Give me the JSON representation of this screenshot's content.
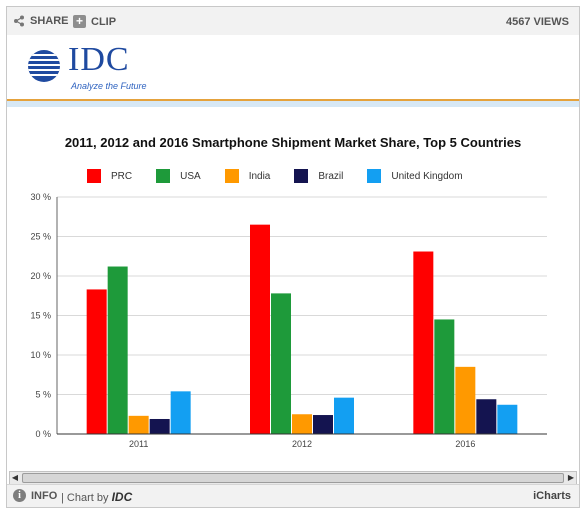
{
  "toolbar": {
    "share_label": "SHARE",
    "clip_label": "CLIP",
    "views": "4567 VIEWS"
  },
  "logo": {
    "text": "IDC",
    "tagline": "Analyze the Future"
  },
  "footer": {
    "info_label": "INFO",
    "chart_by": "| Chart by",
    "chart_by_brand": "IDC",
    "brand": "iCharts"
  },
  "colors": {
    "PRC": "#ff0000",
    "USA": "#1e9a3a",
    "India": "#ff9900",
    "Brazil": "#141450",
    "United Kingdom": "#139ff2"
  },
  "chart_data": {
    "type": "bar",
    "title": "2011, 2012 and 2016 Smartphone Shipment Market Share, Top 5 Countries",
    "categories": [
      "2011",
      "2012",
      "2016"
    ],
    "series": [
      {
        "name": "PRC",
        "values": [
          18.3,
          26.5,
          23.1
        ]
      },
      {
        "name": "USA",
        "values": [
          21.2,
          17.8,
          14.5
        ]
      },
      {
        "name": "India",
        "values": [
          2.3,
          2.5,
          8.5
        ]
      },
      {
        "name": "Brazil",
        "values": [
          1.9,
          2.4,
          4.4
        ]
      },
      {
        "name": "United Kingdom",
        "values": [
          5.4,
          4.6,
          3.7
        ]
      }
    ],
    "ylim": [
      0,
      30
    ],
    "yticks": [
      "0 %",
      "5 %",
      "10 %",
      "15 %",
      "20 %",
      "25 %",
      "30 %"
    ],
    "legend": "top",
    "grid": true
  }
}
